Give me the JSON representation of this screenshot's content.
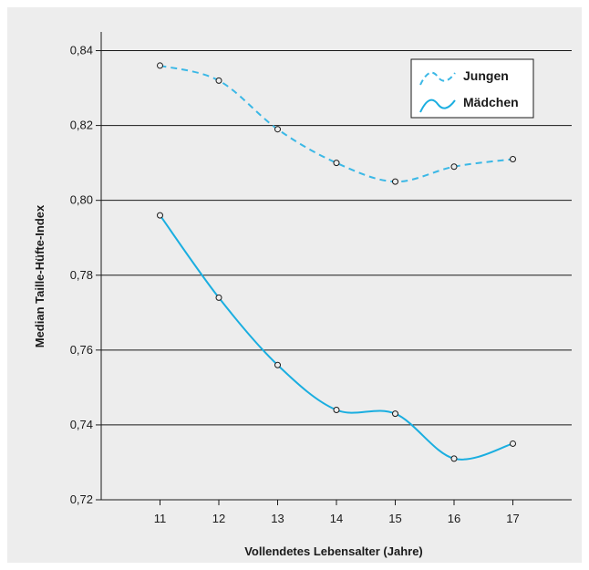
{
  "chart_data": {
    "type": "line",
    "title": "",
    "xlabel": "Vollendetes Lebensalter (Jahre)",
    "ylabel": "Median Taille-Hüfte-Index",
    "x": [
      11,
      12,
      13,
      14,
      15,
      16,
      17
    ],
    "x_ticks": [
      "11",
      "12",
      "13",
      "14",
      "15",
      "16",
      "17"
    ],
    "xlim": [
      10,
      18
    ],
    "ylim": [
      0.72,
      0.845
    ],
    "y_ticks": [
      "0,72",
      "0,74",
      "0,76",
      "0,78",
      "0,80",
      "0,82",
      "0,84"
    ],
    "grid": "horizontal",
    "legend_position": "top-right",
    "series": [
      {
        "name": "Jungen",
        "values": [
          0.836,
          0.832,
          0.819,
          0.81,
          0.805,
          0.809,
          0.811
        ],
        "style": "dashed",
        "color": "#3bb8e6"
      },
      {
        "name": "Mädchen",
        "values": [
          0.796,
          0.774,
          0.756,
          0.744,
          0.743,
          0.731,
          0.735
        ],
        "style": "solid",
        "color": "#1aaee0"
      }
    ]
  }
}
